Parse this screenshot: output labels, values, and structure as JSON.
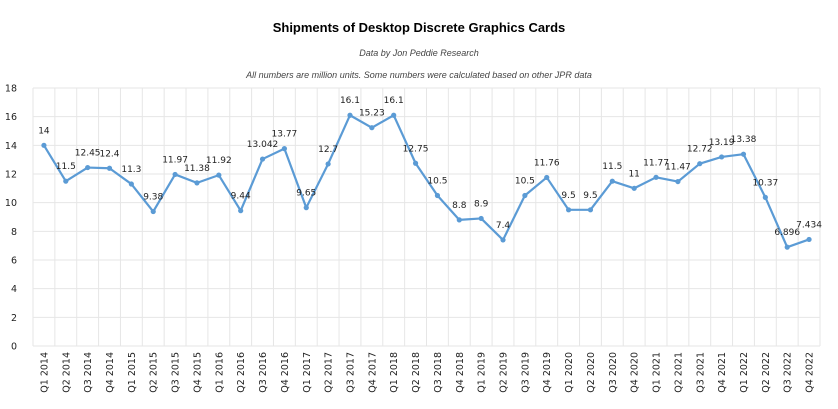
{
  "chart_data": {
    "type": "line",
    "title": "Shipments of Desktop Discrete Graphics Cards",
    "subtitle": "Data by Jon Peddie Research",
    "note": "All numbers are million units. Some numbers were calculated based on other JPR data",
    "xlabel": "",
    "ylabel": "",
    "ylim": [
      0,
      18
    ],
    "yticks": [
      "0",
      "2",
      "4",
      "6",
      "8",
      "10",
      "12",
      "14",
      "16",
      "18"
    ],
    "grid": true,
    "categories": [
      "Q1 2014",
      "Q2 2014",
      "Q3 2014",
      "Q4 2014",
      "Q1 2015",
      "Q2 2015",
      "Q3 2015",
      "Q4 2015",
      "Q1 2016",
      "Q2 2016",
      "Q3 2016",
      "Q4 2016",
      "Q1 2017",
      "Q2 2017",
      "Q3 2017",
      "Q4 2017",
      "Q1 2018",
      "Q2 2018",
      "Q3 2018",
      "Q4 2018",
      "Q1 2019",
      "Q2 2019",
      "Q3 2019",
      "Q4 2019",
      "Q1 2020",
      "Q2 2020",
      "Q3 2020",
      "Q4 2020",
      "Q1 2021",
      "Q2 2021",
      "Q3 2021",
      "Q4 2021",
      "Q1 2022",
      "Q2 2022",
      "Q3 2022",
      "Q4 2022"
    ],
    "series": [
      {
        "values": [
          14,
          11.5,
          12.45,
          12.4,
          11.3,
          9.38,
          11.97,
          11.38,
          11.92,
          9.44,
          13.042,
          13.77,
          9.65,
          12.7,
          16.1,
          15.23,
          16.1,
          12.75,
          10.5,
          8.8,
          8.9,
          7.4,
          10.5,
          11.76,
          9.5,
          9.5,
          11.5,
          11,
          11.77,
          11.47,
          12.72,
          13.19,
          13.38,
          10.37,
          6.896,
          7.434
        ],
        "labels": [
          "14",
          "11.5",
          "12.45",
          "12.4",
          "11.3",
          "9.38",
          "11.97",
          "11.38",
          "11.92",
          "9.44",
          "13.042",
          "13.77",
          "9.65",
          "12.7",
          "16.1",
          "15.23",
          "16.1",
          "12.75",
          "10.5",
          "8.8",
          "8.9",
          "7.4",
          "10.5",
          "11.76",
          "9.5",
          "9.5",
          "11.5",
          "11",
          "11.77",
          "11.47",
          "12.72",
          "13.19",
          "13.38",
          "10.37",
          "6.896",
          "7.434"
        ]
      }
    ],
    "colors": {
      "line": "#5b9bd5",
      "grid": "#e6e6e6"
    }
  }
}
